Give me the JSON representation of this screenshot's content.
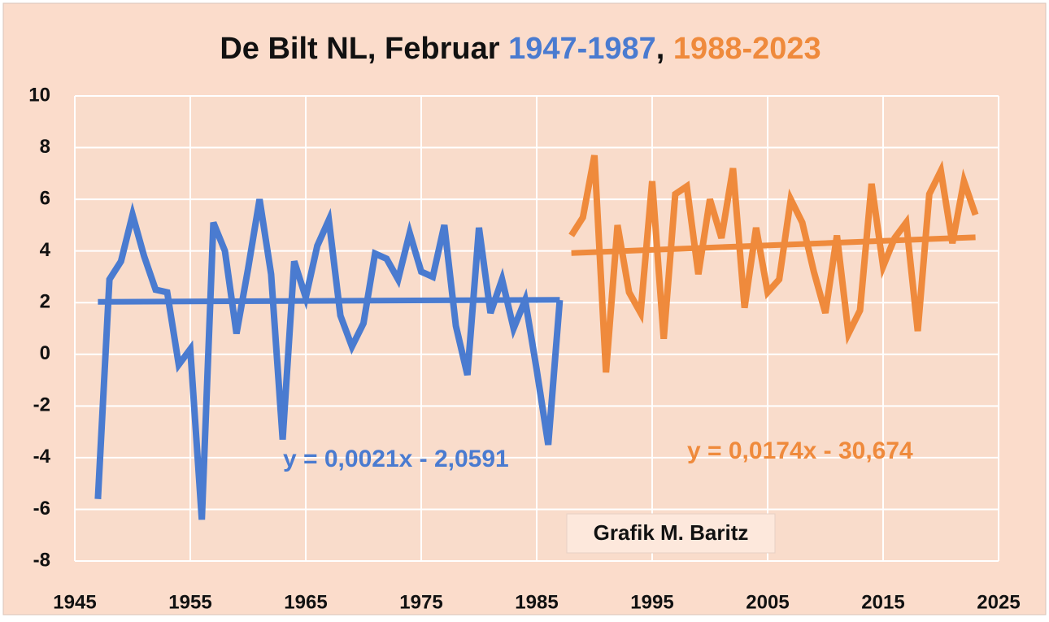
{
  "chart_data": {
    "type": "line",
    "title": "De Bilt NL, Februar",
    "title_separator": ",",
    "xlim": [
      1945,
      2025
    ],
    "xticks": [
      1945,
      1955,
      1965,
      1975,
      1985,
      1995,
      2005,
      2015,
      2025
    ],
    "ylim": [
      -8,
      10
    ],
    "yticks": [
      -8,
      -6,
      -4,
      -2,
      0,
      2,
      4,
      6,
      8,
      10
    ],
    "grid": true,
    "series": [
      {
        "name": "1947-1987",
        "color": "#4a7bd0",
        "x": [
          1947,
          1948,
          1949,
          1950,
          1951,
          1952,
          1953,
          1954,
          1955,
          1956,
          1957,
          1958,
          1959,
          1960,
          1961,
          1962,
          1963,
          1964,
          1965,
          1966,
          1967,
          1968,
          1969,
          1970,
          1971,
          1972,
          1973,
          1974,
          1975,
          1976,
          1977,
          1978,
          1979,
          1980,
          1981,
          1982,
          1983,
          1984,
          1985,
          1986,
          1987
        ],
        "values": [
          -5.6,
          2.9,
          3.6,
          5.4,
          3.8,
          2.5,
          2.4,
          -0.4,
          0.2,
          -6.4,
          5.1,
          4.0,
          0.8,
          3.3,
          6.0,
          3.1,
          -3.3,
          3.6,
          2.2,
          4.2,
          5.2,
          1.5,
          0.3,
          1.2,
          3.9,
          3.7,
          2.9,
          4.7,
          3.2,
          3.0,
          5.0,
          1.1,
          -0.8,
          4.9,
          1.6,
          2.9,
          1.0,
          2.1,
          -0.6,
          -3.5,
          2.1
        ],
        "trendline": {
          "x": [
            1947,
            1987
          ],
          "values": [
            2.03,
            2.11
          ],
          "label": "y = 0,0021x - 2,0591"
        }
      },
      {
        "name": "1988-2023",
        "color": "#ef8a3c",
        "x": [
          1988,
          1989,
          1990,
          1991,
          1992,
          1993,
          1994,
          1995,
          1996,
          1997,
          1998,
          1999,
          2000,
          2001,
          2002,
          2003,
          2004,
          2005,
          2006,
          2007,
          2008,
          2009,
          2010,
          2011,
          2012,
          2013,
          2014,
          2015,
          2016,
          2017,
          2018,
          2019,
          2020,
          2021,
          2022,
          2023
        ],
        "values": [
          4.6,
          5.3,
          7.7,
          -0.7,
          5.0,
          2.4,
          1.6,
          6.7,
          0.6,
          6.2,
          6.5,
          3.1,
          6.0,
          4.5,
          7.2,
          1.8,
          4.9,
          2.4,
          2.9,
          6.0,
          5.1,
          3.2,
          1.6,
          4.6,
          0.8,
          1.7,
          6.6,
          3.4,
          4.5,
          5.1,
          0.9,
          6.2,
          7.1,
          4.3,
          6.7,
          5.4
        ],
        "trendline": {
          "x": [
            1988,
            2023
          ],
          "values": [
            3.92,
            4.53
          ],
          "label": "y = 0,0174x - 30,674"
        }
      }
    ],
    "annotations": [
      "Grafik M. Baritz"
    ]
  }
}
